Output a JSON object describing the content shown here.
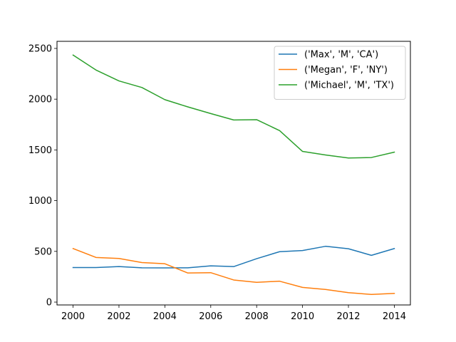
{
  "chart_data": {
    "type": "line",
    "title": "",
    "xlabel": "",
    "ylabel": "",
    "x": [
      2000,
      2001,
      2002,
      2003,
      2004,
      2005,
      2006,
      2007,
      2008,
      2009,
      2010,
      2011,
      2012,
      2013,
      2014
    ],
    "xlim": [
      1999.3,
      2014.7
    ],
    "ylim": [
      -28,
      2570
    ],
    "xticks": [
      2000,
      2002,
      2004,
      2006,
      2008,
      2010,
      2012,
      2014
    ],
    "yticks": [
      0,
      500,
      1000,
      1500,
      2000,
      2500
    ],
    "grid": false,
    "legend_position": "top-right",
    "series": [
      {
        "name": "('Max', 'M', 'CA')",
        "color": "#1f77b4",
        "values": [
          341,
          341,
          350,
          338,
          337,
          338,
          357,
          350,
          428,
          497,
          508,
          550,
          526,
          461,
          528
        ]
      },
      {
        "name": "('Megan', 'F', 'NY')",
        "color": "#ff7f0e",
        "values": [
          528,
          440,
          430,
          390,
          378,
          287,
          290,
          218,
          195,
          206,
          145,
          125,
          93,
          76,
          86
        ]
      },
      {
        "name": "('Michael', 'M', 'TX')",
        "color": "#2ca02c",
        "values": [
          2435,
          2287,
          2180,
          2115,
          1995,
          1924,
          1858,
          1795,
          1798,
          1690,
          1485,
          1450,
          1420,
          1425,
          1478
        ]
      }
    ]
  }
}
